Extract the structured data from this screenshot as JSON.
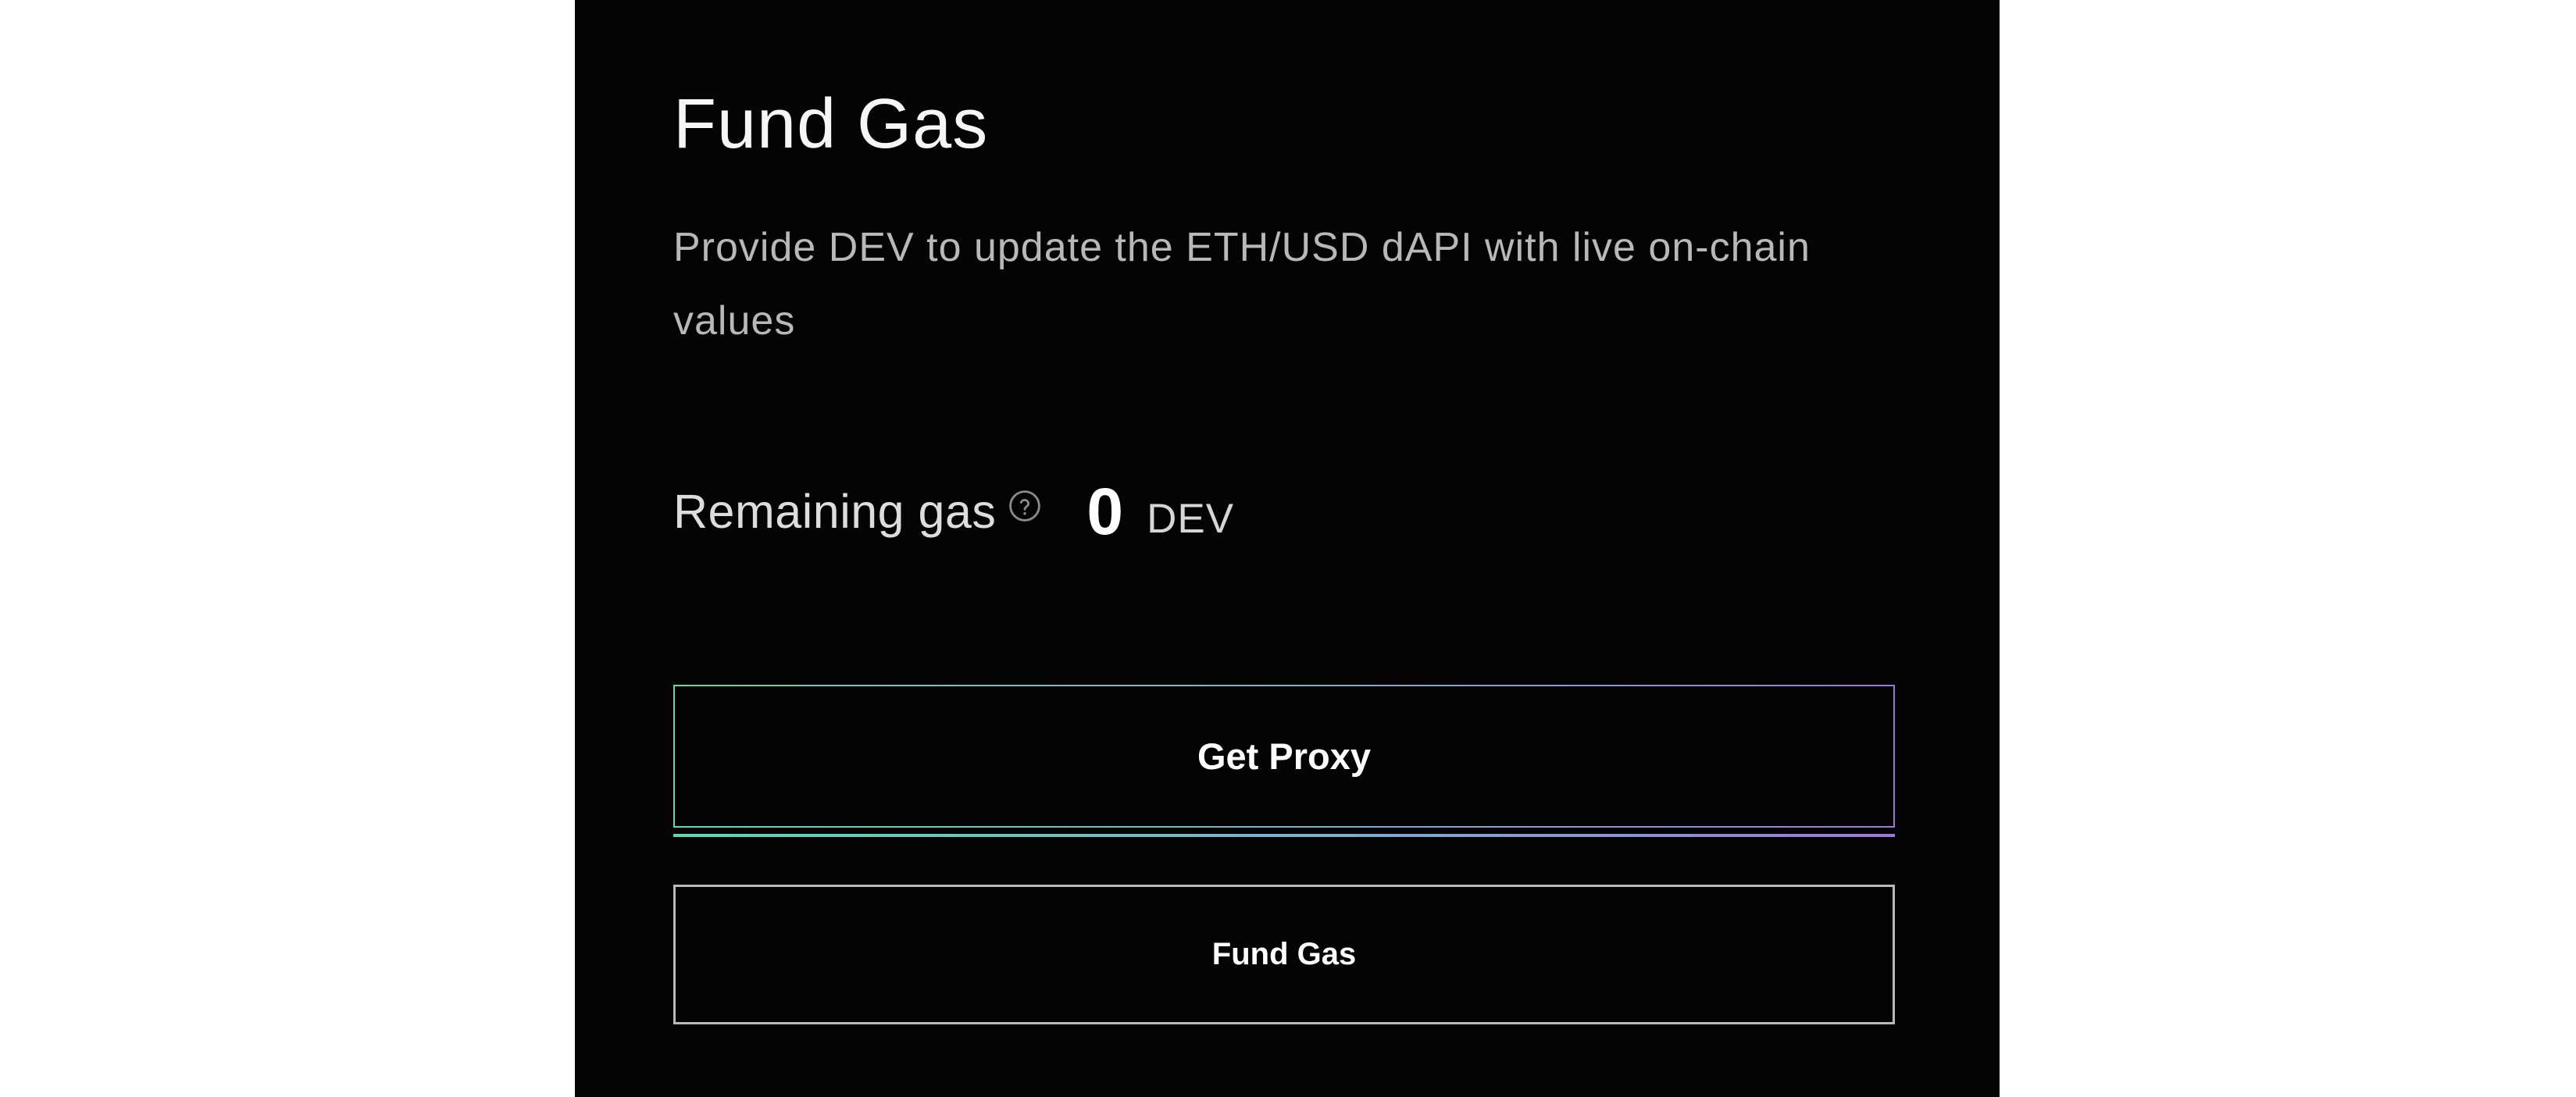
{
  "panel": {
    "title": "Fund Gas",
    "description": "Provide DEV to update the ETH/USD dAPI with live on-chain values"
  },
  "remaining_gas": {
    "label": "Remaining gas",
    "value": "0",
    "unit": "DEV",
    "help_icon": "question-circle-icon"
  },
  "actions": {
    "get_proxy_label": "Get Proxy",
    "fund_gas_label": "Fund Gas"
  },
  "colors": {
    "background": "#040404",
    "page_background": "#ffffff",
    "accent_gradient_start": "#5fd6b4",
    "accent_gradient_end": "#9a78d6",
    "secondary_border": "#b9b9b9"
  }
}
